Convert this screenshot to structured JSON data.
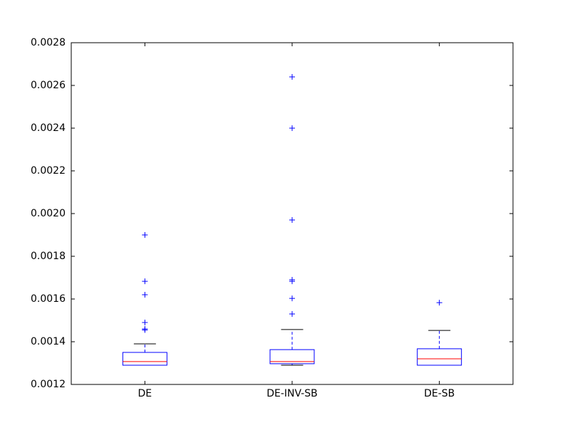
{
  "chart_data": {
    "type": "box",
    "categories": [
      "DE",
      "DE-INV-SB",
      "DE-SB"
    ],
    "box_color": "#0000ff",
    "median_color": "#ff0000",
    "cap_color": "#000000",
    "flier_color": "#0000ff",
    "boxes": [
      {
        "whislo": 0.00129,
        "q1": 0.00129,
        "med": 0.001307,
        "q3": 0.00135,
        "whishi": 0.00139,
        "fliers": [
          0.0019,
          0.001683,
          0.00162,
          0.00149,
          0.00146,
          0.001455
        ]
      },
      {
        "whislo": 0.00129,
        "q1": 0.001297,
        "med": 0.001307,
        "q3": 0.001363,
        "whishi": 0.001457,
        "fliers": [
          0.00264,
          0.0024,
          0.00197,
          0.00169,
          0.001683,
          0.001603,
          0.00153
        ]
      },
      {
        "whislo": 0.00129,
        "q1": 0.00129,
        "med": 0.00132,
        "q3": 0.001367,
        "whishi": 0.001453,
        "fliers": [
          0.001583
        ]
      }
    ],
    "ylim": [
      0.0012,
      0.0028
    ],
    "yticks": [
      0.0012,
      0.0014,
      0.0016,
      0.0018,
      {
        "value": 0.002,
        "label": "0.0020"
      },
      0.0022,
      0.0024,
      0.0026,
      0.0028
    ]
  }
}
